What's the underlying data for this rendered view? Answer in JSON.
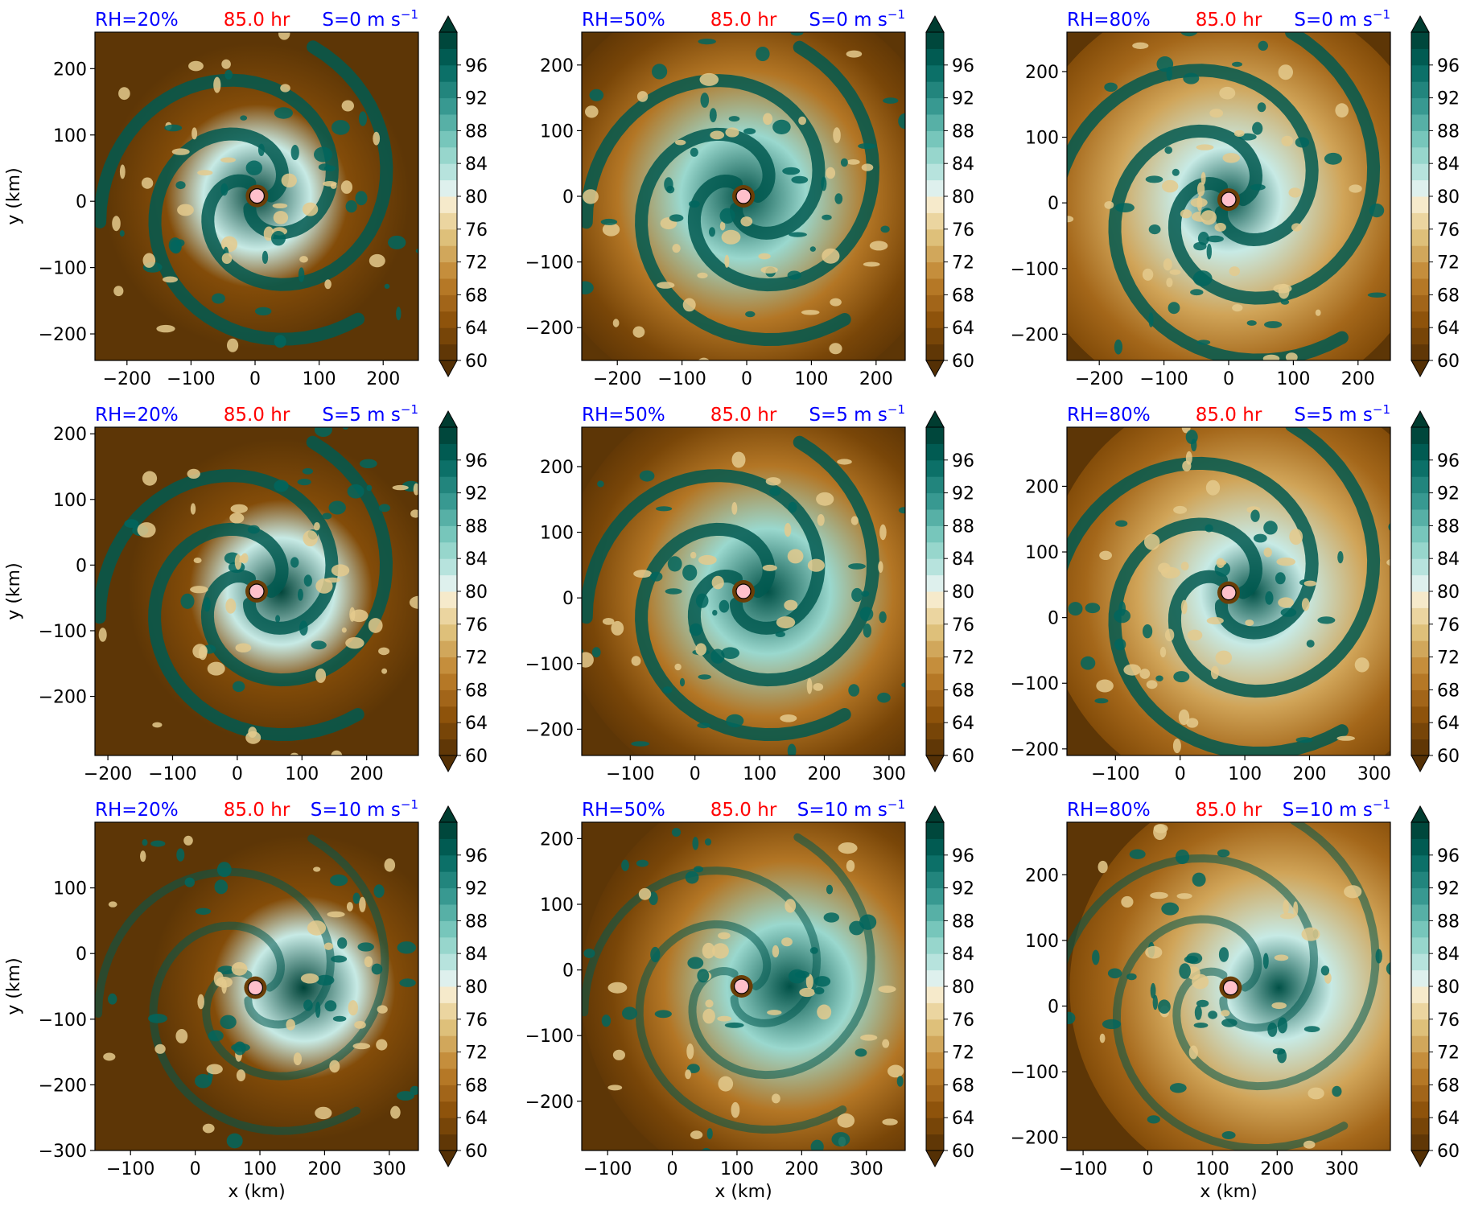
{
  "figure": {
    "colors": {
      "rh_label": "#0000ff",
      "time_label": "#ff0000",
      "shear_label": "#0000ff",
      "center_marker": "#ffc0cb",
      "colormap_low": "#543005",
      "colormap_mid": "#f5f5f5",
      "colormap_high": "#003c30"
    },
    "colormap": "BrBG",
    "center_marker_icon": "circle"
  },
  "chart_data": [
    {
      "type": "heatmap",
      "row": 0,
      "col": 0,
      "rh": "RH=20%",
      "time": "85.0 hr",
      "shear": "S=0",
      "shear_unit": "m s",
      "xlabel": "",
      "ylabel": "y (km)",
      "xlim": [
        -250,
        255
      ],
      "ylim": [
        -240,
        255
      ],
      "xticks": [
        "−200",
        "−100",
        "0",
        "100",
        "200"
      ],
      "xtick_values": [
        -200,
        -100,
        0,
        100,
        200
      ],
      "yticks": [
        "−200",
        "−100",
        "0",
        "100",
        "200"
      ],
      "ytick_values": [
        -200,
        -100,
        0,
        100,
        200
      ],
      "center": [
        3,
        8
      ],
      "colorbar": {
        "ticks": [
          "60",
          "64",
          "68",
          "72",
          "76",
          "80",
          "84",
          "88",
          "92",
          "96"
        ],
        "range": [
          60,
          100
        ]
      }
    },
    {
      "type": "heatmap",
      "row": 0,
      "col": 1,
      "rh": "RH=50%",
      "time": "85.0 hr",
      "shear": "S=0",
      "shear_unit": "m s",
      "xlabel": "",
      "ylabel": "",
      "xlim": [
        -255,
        245
      ],
      "ylim": [
        -250,
        250
      ],
      "xticks": [
        "−200",
        "−100",
        "0",
        "100",
        "200"
      ],
      "xtick_values": [
        -200,
        -100,
        0,
        100,
        200
      ],
      "yticks": [
        "−200",
        "−100",
        "0",
        "100",
        "200"
      ],
      "ytick_values": [
        -200,
        -100,
        0,
        100,
        200
      ],
      "center": [
        -5,
        0
      ],
      "colorbar": {
        "ticks": [
          "60",
          "64",
          "68",
          "72",
          "76",
          "80",
          "84",
          "88",
          "92",
          "96"
        ],
        "range": [
          60,
          100
        ]
      }
    },
    {
      "type": "heatmap",
      "row": 0,
      "col": 2,
      "rh": "RH=80%",
      "time": "85.0 hr",
      "shear": "S=0",
      "shear_unit": "m s",
      "xlabel": "",
      "ylabel": "",
      "xlim": [
        -250,
        250
      ],
      "ylim": [
        -240,
        260
      ],
      "xticks": [
        "−200",
        "−100",
        "0",
        "100",
        "200"
      ],
      "xtick_values": [
        -200,
        -100,
        0,
        100,
        200
      ],
      "yticks": [
        "−200",
        "−100",
        "0",
        "100",
        "200"
      ],
      "ytick_values": [
        -200,
        -100,
        0,
        100,
        200
      ],
      "center": [
        0,
        5
      ],
      "colorbar": {
        "ticks": [
          "60",
          "64",
          "68",
          "72",
          "76",
          "80",
          "84",
          "88",
          "92",
          "96"
        ],
        "range": [
          60,
          100
        ]
      }
    },
    {
      "type": "heatmap",
      "row": 1,
      "col": 0,
      "rh": "RH=20%",
      "time": "85.0 hr",
      "shear": "S=5",
      "shear_unit": "m s",
      "xlabel": "",
      "ylabel": "y (km)",
      "xlim": [
        -220,
        280
      ],
      "ylim": [
        -290,
        210
      ],
      "xticks": [
        "−200",
        "−100",
        "0",
        "100",
        "200"
      ],
      "xtick_values": [
        -200,
        -100,
        0,
        100,
        200
      ],
      "yticks": [
        "−200",
        "−100",
        "0",
        "100",
        "200"
      ],
      "ytick_values": [
        -200,
        -100,
        0,
        100,
        200
      ],
      "center": [
        30,
        -40
      ],
      "colorbar": {
        "ticks": [
          "60",
          "64",
          "68",
          "72",
          "76",
          "80",
          "84",
          "88",
          "92",
          "96"
        ],
        "range": [
          60,
          100
        ]
      }
    },
    {
      "type": "heatmap",
      "row": 1,
      "col": 1,
      "rh": "RH=50%",
      "time": "85.0 hr",
      "shear": "S=5",
      "shear_unit": "m s",
      "xlabel": "",
      "ylabel": "",
      "xlim": [
        -175,
        325
      ],
      "ylim": [
        -240,
        260
      ],
      "xticks": [
        "−100",
        "0",
        "100",
        "200",
        "300"
      ],
      "xtick_values": [
        -100,
        0,
        100,
        200,
        300
      ],
      "yticks": [
        "−200",
        "−100",
        "0",
        "100",
        "200"
      ],
      "ytick_values": [
        -200,
        -100,
        0,
        100,
        200
      ],
      "center": [
        75,
        10
      ],
      "colorbar": {
        "ticks": [
          "60",
          "64",
          "68",
          "72",
          "76",
          "80",
          "84",
          "88",
          "92",
          "96"
        ],
        "range": [
          60,
          100
        ]
      }
    },
    {
      "type": "heatmap",
      "row": 1,
      "col": 2,
      "rh": "RH=80%",
      "time": "85.0 hr",
      "shear": "S=5",
      "shear_unit": "m s",
      "xlabel": "",
      "ylabel": "",
      "xlim": [
        -175,
        325
      ],
      "ylim": [
        -210,
        290
      ],
      "xticks": [
        "−100",
        "0",
        "100",
        "200",
        "300"
      ],
      "xtick_values": [
        -100,
        0,
        100,
        200,
        300
      ],
      "yticks": [
        "−200",
        "−100",
        "0",
        "100",
        "200"
      ],
      "ytick_values": [
        -200,
        -100,
        0,
        100,
        200
      ],
      "center": [
        75,
        38
      ],
      "colorbar": {
        "ticks": [
          "60",
          "64",
          "68",
          "72",
          "76",
          "80",
          "84",
          "88",
          "92",
          "96"
        ],
        "range": [
          60,
          100
        ]
      }
    },
    {
      "type": "heatmap",
      "row": 2,
      "col": 0,
      "rh": "RH=20%",
      "time": "85.0 hr",
      "shear": "S=10",
      "shear_unit": "m s",
      "xlabel": "x (km)",
      "ylabel": "y (km)",
      "xlim": [
        -155,
        345
      ],
      "ylim": [
        -300,
        200
      ],
      "xticks": [
        "−100",
        "0",
        "100",
        "200",
        "300"
      ],
      "xtick_values": [
        -100,
        0,
        100,
        200,
        300
      ],
      "yticks": [
        "−300",
        "−200",
        "−100",
        "0",
        "100"
      ],
      "ytick_values": [
        -300,
        -200,
        -100,
        0,
        100
      ],
      "center": [
        93,
        -52
      ],
      "colorbar": {
        "ticks": [
          "60",
          "64",
          "68",
          "72",
          "76",
          "80",
          "84",
          "88",
          "92",
          "96"
        ],
        "range": [
          60,
          100
        ]
      }
    },
    {
      "type": "heatmap",
      "row": 2,
      "col": 1,
      "rh": "RH=50%",
      "time": "85.0 hr",
      "shear": "S=10",
      "shear_unit": "m s",
      "xlabel": "x (km)",
      "ylabel": "",
      "xlim": [
        -140,
        360
      ],
      "ylim": [
        -275,
        225
      ],
      "xticks": [
        "−100",
        "0",
        "100",
        "200",
        "300"
      ],
      "xtick_values": [
        -100,
        0,
        100,
        200,
        300
      ],
      "yticks": [
        "−200",
        "−100",
        "0",
        "100",
        "200"
      ],
      "ytick_values": [
        -200,
        -100,
        0,
        100,
        200
      ],
      "center": [
        107,
        -25
      ],
      "colorbar": {
        "ticks": [
          "60",
          "64",
          "68",
          "72",
          "76",
          "80",
          "84",
          "88",
          "92",
          "96"
        ],
        "range": [
          60,
          100
        ]
      }
    },
    {
      "type": "heatmap",
      "row": 2,
      "col": 2,
      "rh": "RH=80%",
      "time": "85.0 hr",
      "shear": "S=10",
      "shear_unit": "m s",
      "xlabel": "x (km)",
      "ylabel": "",
      "xlim": [
        -125,
        375
      ],
      "ylim": [
        -220,
        280
      ],
      "xticks": [
        "−100",
        "0",
        "100",
        "200",
        "300"
      ],
      "xtick_values": [
        -100,
        0,
        100,
        200,
        300
      ],
      "yticks": [
        "−200",
        "−100",
        "0",
        "100",
        "200"
      ],
      "ytick_values": [
        -200,
        -100,
        0,
        100,
        200
      ],
      "center": [
        128,
        28
      ],
      "colorbar": {
        "ticks": [
          "60",
          "64",
          "68",
          "72",
          "76",
          "80",
          "84",
          "88",
          "92",
          "96"
        ],
        "range": [
          60,
          100
        ]
      }
    }
  ]
}
